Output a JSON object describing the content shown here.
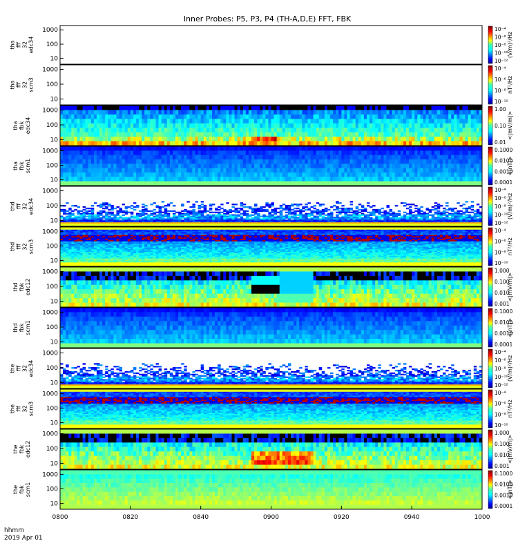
{
  "title": "Inner Probes: P5, P3, P4 (TH-A,D,E) FFT, FBK",
  "time_label": {
    "format": "hhmm",
    "date": "2019 Apr 01"
  },
  "chart_data": {
    "type": "heatmap",
    "x_ticks": [
      "0800",
      "0820",
      "0840",
      "0900",
      "0920",
      "0940",
      "1000"
    ],
    "y_ticks": [
      "10",
      "100",
      "1000"
    ],
    "panels": [
      {
        "lines": [
          "tha",
          "fff",
          "32",
          "edc34"
        ],
        "cb_unit": "(V/m)²/Hz",
        "cb_ticks": [
          "10⁻⁴",
          "10⁻⁶",
          "10⁻⁸",
          "10⁻¹⁰",
          "10⁻¹²"
        ],
        "kind": "blank"
      },
      {
        "lines": [
          "tha",
          "fff",
          "32",
          "scm3"
        ],
        "cb_unit": "nT²/Hz",
        "cb_ticks": [
          "10⁻⁴",
          "10⁻⁶",
          "10⁻⁸",
          "10⁻¹⁰"
        ],
        "kind": "blank"
      },
      {
        "lines": [
          "tha",
          "fbk",
          "edc34"
        ],
        "cb_unit": "<|mV/m|>",
        "cb_ticks": [
          "1.00",
          "0.10",
          "0.01"
        ],
        "kind": "fbk_e"
      },
      {
        "lines": [
          "tha",
          "fbk",
          "scm1"
        ],
        "cb_unit": "<|nT|>",
        "cb_ticks": [
          "0.1000",
          "0.0100",
          "0.0010",
          "0.0001"
        ],
        "kind": "fbk_b"
      },
      {
        "lines": [
          "thd",
          "fff",
          "32",
          "edc34"
        ],
        "cb_unit": "(V/m)²/Hz",
        "cb_ticks": [
          "10⁻⁴",
          "10⁻⁶",
          "10⁻⁸",
          "10⁻¹⁰",
          "10⁻¹²"
        ],
        "kind": "fff_e"
      },
      {
        "lines": [
          "thd",
          "fff",
          "32",
          "scm3"
        ],
        "cb_unit": "nT²/Hz",
        "cb_ticks": [
          "10⁻⁴",
          "10⁻⁶",
          "10⁻⁸",
          "10⁻¹⁰"
        ],
        "kind": "fff_b"
      },
      {
        "lines": [
          "thd",
          "fbk",
          "edc12"
        ],
        "cb_unit": "<|mV/m|>",
        "cb_ticks": [
          "1.000",
          "0.100",
          "0.010",
          "0.001"
        ],
        "kind": "fbk_e12"
      },
      {
        "lines": [
          "thd",
          "fbk",
          "scm1"
        ],
        "cb_unit": "<|nT|>",
        "cb_ticks": [
          "0.1000",
          "0.0100",
          "0.0010",
          "0.0001"
        ],
        "kind": "fbk_b2"
      },
      {
        "lines": [
          "the",
          "fff",
          "32",
          "edc34"
        ],
        "cb_unit": "(V/m)²/Hz",
        "cb_ticks": [
          "10⁻⁴",
          "10⁻⁶",
          "10⁻⁸",
          "10⁻¹⁰",
          "10⁻¹²"
        ],
        "kind": "fff_e"
      },
      {
        "lines": [
          "the",
          "fff",
          "32",
          "scm3"
        ],
        "cb_unit": "nT²/Hz",
        "cb_ticks": [
          "10⁻⁴",
          "10⁻⁶",
          "10⁻⁸",
          "10⁻¹⁰"
        ],
        "kind": "fff_b"
      },
      {
        "lines": [
          "the",
          "fbk",
          "edc12"
        ],
        "cb_unit": "<|mV/m|>",
        "cb_ticks": [
          "1.000",
          "0.100",
          "0.010",
          "0.001"
        ],
        "kind": "fbk_e12b"
      },
      {
        "lines": [
          "the",
          "fbk",
          "scm1"
        ],
        "cb_unit": "<|nT|>",
        "cb_ticks": [
          "0.1000",
          "0.0100",
          "0.0010",
          "0.0001"
        ],
        "kind": "fbk_b3"
      }
    ]
  }
}
